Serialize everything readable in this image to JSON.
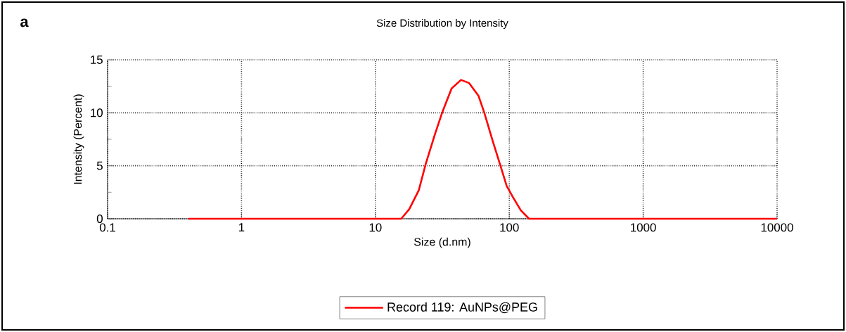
{
  "chart_data": {
    "type": "line",
    "title": "Size Distribution by Intensity",
    "xlabel": "Size (d.nm)",
    "ylabel": "Intensity (Percent)",
    "annotations": [
      "a"
    ],
    "log": "x",
    "xlim": [
      0.1,
      10000
    ],
    "ylim": [
      0,
      15
    ],
    "xticks": [
      0.1,
      1,
      10,
      100,
      1000,
      10000
    ],
    "yticks": [
      0,
      5,
      10,
      15
    ],
    "grid": true,
    "legend": "bottom",
    "marker": "none",
    "line_style": "solid",
    "series": [
      {
        "name": "Record 119: AuNPs@PEG",
        "color": "#ff0000",
        "x": [
          0.4,
          1,
          10,
          15.6,
          17.9,
          21.1,
          23.8,
          27.9,
          31.5,
          37.1,
          43.6,
          50.2,
          58.9,
          65.1,
          75.0,
          86.4,
          95.6,
          105.8,
          121.8,
          140.4,
          1000,
          10000
        ],
        "values": [
          0,
          0,
          0,
          0,
          0.9,
          2.7,
          5.2,
          8.0,
          10.0,
          12.3,
          13.1,
          12.8,
          11.6,
          10.0,
          7.4,
          4.9,
          3.1,
          2.1,
          0.8,
          0,
          0,
          0
        ]
      }
    ]
  }
}
